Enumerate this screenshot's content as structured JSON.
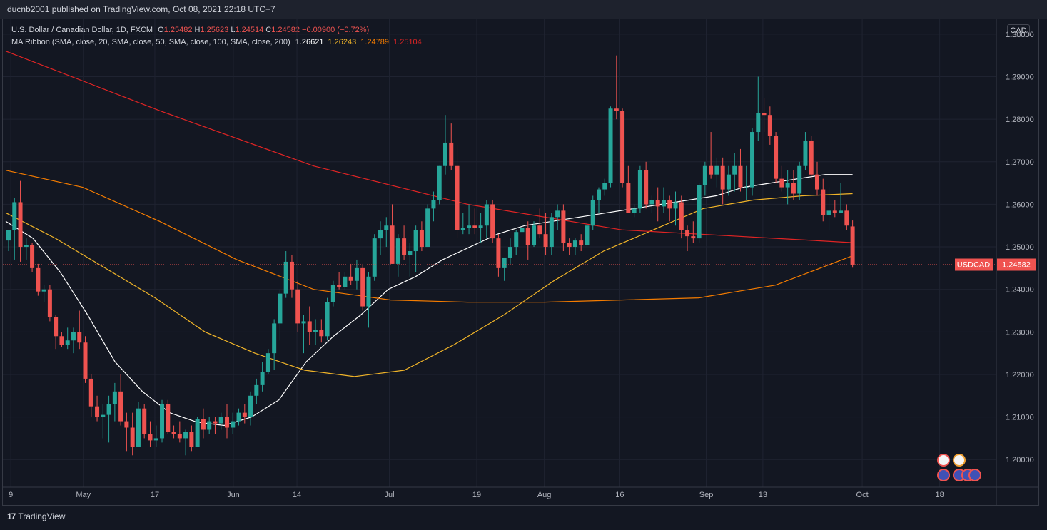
{
  "header": {
    "published": "ducnb2001 published on TradingView.com, Oct 08, 2021 22:18 UTC+7"
  },
  "legend": {
    "symbol": "U.S. Dollar / Canadian Dollar, 1D, FXCM",
    "open_label": "O",
    "open": "1.25482",
    "high_label": "H",
    "high": "1.25623",
    "low_label": "L",
    "low": "1.24514",
    "close_label": "C",
    "close": "1.24582",
    "change": "−0.00900 (−0.72%)",
    "ma_label": "MA Ribbon (SMA, close, 20, SMA, close, 50, SMA, close, 100, SMA, close, 200)",
    "ma20": "1.26621",
    "ma50": "1.26243",
    "ma100": "1.24789",
    "ma200": "1.25104"
  },
  "currency_badge": "CAD",
  "price_tag": {
    "symbol": "USDCAD",
    "value": "1.24582"
  },
  "footer": {
    "brand": "TradingView",
    "brand_mark": "17"
  },
  "colors": {
    "up": "#26a69a",
    "down": "#ef5350",
    "ma20": "#ffffff",
    "ma50": "#f0b429",
    "ma100": "#f57c00",
    "ma200": "#e02424",
    "background": "#131722"
  },
  "chart_data": {
    "type": "candlestick",
    "yaxis": {
      "ylim": [
        1.1935,
        1.3035
      ],
      "ticks": [
        "1.30000",
        "1.29000",
        "1.28000",
        "1.27000",
        "1.26000",
        "1.25000",
        "1.24000",
        "1.23000",
        "1.22000",
        "1.21000",
        "1.20000"
      ],
      "side": "right"
    },
    "xaxis": {
      "tick_labels": [
        "9",
        "May",
        "17",
        "Jun",
        "14",
        "Jul",
        "19",
        "Aug",
        "16",
        "Sep",
        "13",
        "Oct",
        "18"
      ]
    },
    "grid": true,
    "candles": [
      [
        1.2515,
        1.254,
        1.249,
        1.254
      ],
      [
        1.254,
        1.2615,
        1.247,
        1.2605
      ],
      [
        1.2605,
        1.2655,
        1.2465,
        1.25
      ],
      [
        1.25,
        1.252,
        1.247,
        1.2505
      ],
      [
        1.2505,
        1.251,
        1.244,
        1.245
      ],
      [
        1.245,
        1.246,
        1.2385,
        1.2395
      ],
      [
        1.2395,
        1.241,
        1.237,
        1.24
      ],
      [
        1.24,
        1.241,
        1.2325,
        1.2335
      ],
      [
        1.2335,
        1.234,
        1.226,
        1.229
      ],
      [
        1.229,
        1.23,
        1.2265,
        1.227
      ],
      [
        1.227,
        1.231,
        1.226,
        1.228
      ],
      [
        1.228,
        1.231,
        1.225,
        1.23
      ],
      [
        1.23,
        1.235,
        1.226,
        1.2275
      ],
      [
        1.2275,
        1.229,
        1.218,
        1.219
      ],
      [
        1.219,
        1.22,
        1.21,
        1.2125
      ],
      [
        1.2125,
        1.215,
        1.209,
        1.21
      ],
      [
        1.21,
        1.213,
        1.205,
        1.2105
      ],
      [
        1.2105,
        1.215,
        1.204,
        1.213
      ],
      [
        1.213,
        1.218,
        1.209,
        1.216
      ],
      [
        1.216,
        1.22,
        1.208,
        1.209
      ],
      [
        1.209,
        1.211,
        1.202,
        1.2075
      ],
      [
        1.2075,
        1.211,
        1.201,
        1.203
      ],
      [
        1.203,
        1.2135,
        1.203,
        1.212
      ],
      [
        1.212,
        1.213,
        1.205,
        1.206
      ],
      [
        1.206,
        1.209,
        1.203,
        1.2045
      ],
      [
        1.2045,
        1.208,
        1.203,
        1.205
      ],
      [
        1.205,
        1.214,
        1.204,
        1.213
      ],
      [
        1.213,
        1.214,
        1.206,
        1.2065
      ],
      [
        1.2065,
        1.208,
        1.205,
        1.206
      ],
      [
        1.206,
        1.209,
        1.204,
        1.205
      ],
      [
        1.205,
        1.207,
        1.201,
        1.2065
      ],
      [
        1.2065,
        1.208,
        1.202,
        1.203
      ],
      [
        1.203,
        1.21,
        1.203,
        1.2095
      ],
      [
        1.2095,
        1.212,
        1.205,
        1.207
      ],
      [
        1.207,
        1.21,
        1.206,
        1.209
      ],
      [
        1.209,
        1.21,
        1.206,
        1.2085
      ],
      [
        1.2085,
        1.211,
        1.207,
        1.21
      ],
      [
        1.21,
        1.213,
        1.205,
        1.2075
      ],
      [
        1.2075,
        1.211,
        1.206,
        1.209
      ],
      [
        1.209,
        1.212,
        1.208,
        1.211
      ],
      [
        1.211,
        1.213,
        1.2085,
        1.21
      ],
      [
        1.21,
        1.216,
        1.208,
        1.215
      ],
      [
        1.215,
        1.219,
        1.213,
        1.2175
      ],
      [
        1.2175,
        1.223,
        1.216,
        1.2205
      ],
      [
        1.2205,
        1.226,
        1.22,
        1.225
      ],
      [
        1.225,
        1.233,
        1.221,
        1.232
      ],
      [
        1.232,
        1.24,
        1.228,
        1.239
      ],
      [
        1.239,
        1.249,
        1.238,
        1.2465
      ],
      [
        1.2465,
        1.248,
        1.238,
        1.24
      ],
      [
        1.24,
        1.242,
        1.23,
        1.232
      ],
      [
        1.232,
        1.234,
        1.225,
        1.2325
      ],
      [
        1.2325,
        1.236,
        1.227,
        1.23
      ],
      [
        1.23,
        1.233,
        1.227,
        1.2305
      ],
      [
        1.2305,
        1.233,
        1.2275,
        1.229
      ],
      [
        1.229,
        1.238,
        1.228,
        1.237
      ],
      [
        1.237,
        1.242,
        1.236,
        1.241
      ],
      [
        1.241,
        1.244,
        1.24,
        1.2405
      ],
      [
        1.2405,
        1.244,
        1.24,
        1.243
      ],
      [
        1.243,
        1.246,
        1.241,
        1.242
      ],
      [
        1.242,
        1.247,
        1.24,
        1.245
      ],
      [
        1.245,
        1.246,
        1.235,
        1.236
      ],
      [
        1.236,
        1.244,
        1.231,
        1.243
      ],
      [
        1.243,
        1.253,
        1.242,
        1.252
      ],
      [
        1.252,
        1.256,
        1.248,
        1.254
      ],
      [
        1.254,
        1.257,
        1.25,
        1.255
      ],
      [
        1.255,
        1.26,
        1.246,
        1.246
      ],
      [
        1.246,
        1.253,
        1.243,
        1.252
      ],
      [
        1.252,
        1.255,
        1.247,
        1.248
      ],
      [
        1.248,
        1.251,
        1.243,
        1.249
      ],
      [
        1.249,
        1.255,
        1.244,
        1.254
      ],
      [
        1.254,
        1.256,
        1.249,
        1.25
      ],
      [
        1.25,
        1.26,
        1.25,
        1.259
      ],
      [
        1.259,
        1.263,
        1.256,
        1.261
      ],
      [
        1.261,
        1.269,
        1.26,
        1.269
      ],
      [
        1.269,
        1.281,
        1.267,
        1.2745
      ],
      [
        1.2745,
        1.279,
        1.268,
        1.269
      ],
      [
        1.269,
        1.274,
        1.252,
        1.254
      ],
      [
        1.254,
        1.258,
        1.253,
        1.2545
      ],
      [
        1.2545,
        1.26,
        1.253,
        1.255
      ],
      [
        1.255,
        1.259,
        1.253,
        1.2545
      ],
      [
        1.2545,
        1.258,
        1.251,
        1.255
      ],
      [
        1.255,
        1.261,
        1.252,
        1.26
      ],
      [
        1.26,
        1.261,
        1.251,
        1.252
      ],
      [
        1.252,
        1.253,
        1.243,
        1.245
      ],
      [
        1.245,
        1.247,
        1.242,
        1.2475
      ],
      [
        1.2475,
        1.252,
        1.246,
        1.25
      ],
      [
        1.25,
        1.254,
        1.248,
        1.2535
      ],
      [
        1.2535,
        1.257,
        1.251,
        1.2545
      ],
      [
        1.2545,
        1.256,
        1.247,
        1.2505
      ],
      [
        1.2505,
        1.256,
        1.25,
        1.255
      ],
      [
        1.255,
        1.259,
        1.252,
        1.253
      ],
      [
        1.253,
        1.258,
        1.248,
        1.25
      ],
      [
        1.25,
        1.258,
        1.248,
        1.257
      ],
      [
        1.257,
        1.26,
        1.254,
        1.2585
      ],
      [
        1.2585,
        1.26,
        1.249,
        1.251
      ],
      [
        1.251,
        1.252,
        1.248,
        1.25
      ],
      [
        1.25,
        1.252,
        1.248,
        1.2515
      ],
      [
        1.2515,
        1.253,
        1.249,
        1.2505
      ],
      [
        1.2505,
        1.256,
        1.25,
        1.255
      ],
      [
        1.255,
        1.262,
        1.254,
        1.261
      ],
      [
        1.261,
        1.264,
        1.258,
        1.2635
      ],
      [
        1.2635,
        1.266,
        1.262,
        1.265
      ],
      [
        1.265,
        1.283,
        1.264,
        1.2825
      ],
      [
        1.2825,
        1.295,
        1.28,
        1.282
      ],
      [
        1.282,
        1.2825,
        1.264,
        1.265
      ],
      [
        1.265,
        1.269,
        1.258,
        1.258
      ],
      [
        1.258,
        1.26,
        1.257,
        1.259
      ],
      [
        1.259,
        1.269,
        1.258,
        1.268
      ],
      [
        1.268,
        1.27,
        1.259,
        1.26
      ],
      [
        1.26,
        1.262,
        1.258,
        1.261
      ],
      [
        1.261,
        1.264,
        1.256,
        1.2595
      ],
      [
        1.2595,
        1.264,
        1.258,
        1.261
      ],
      [
        1.261,
        1.262,
        1.256,
        1.259
      ],
      [
        1.259,
        1.263,
        1.255,
        1.2605
      ],
      [
        1.2605,
        1.262,
        1.252,
        1.254
      ],
      [
        1.254,
        1.255,
        1.249,
        1.2525
      ],
      [
        1.2525,
        1.256,
        1.251,
        1.252
      ],
      [
        1.252,
        1.265,
        1.251,
        1.2645
      ],
      [
        1.2645,
        1.27,
        1.262,
        1.269
      ],
      [
        1.269,
        1.277,
        1.266,
        1.267
      ],
      [
        1.267,
        1.271,
        1.264,
        1.269
      ],
      [
        1.269,
        1.271,
        1.26,
        1.2635
      ],
      [
        1.2635,
        1.269,
        1.262,
        1.267
      ],
      [
        1.267,
        1.272,
        1.263,
        1.269
      ],
      [
        1.269,
        1.273,
        1.263,
        1.264
      ],
      [
        1.264,
        1.269,
        1.261,
        1.264
      ],
      [
        1.264,
        1.278,
        1.262,
        1.277
      ],
      [
        1.277,
        1.29,
        1.275,
        1.2815
      ],
      [
        1.2815,
        1.285,
        1.277,
        1.281
      ],
      [
        1.281,
        1.283,
        1.274,
        1.276
      ],
      [
        1.276,
        1.277,
        1.265,
        1.266
      ],
      [
        1.266,
        1.269,
        1.263,
        1.264
      ],
      [
        1.264,
        1.268,
        1.26,
        1.265
      ],
      [
        1.265,
        1.268,
        1.261,
        1.2625
      ],
      [
        1.2625,
        1.27,
        1.261,
        1.269
      ],
      [
        1.269,
        1.277,
        1.268,
        1.275
      ],
      [
        1.275,
        1.276,
        1.266,
        1.267
      ],
      [
        1.267,
        1.27,
        1.262,
        1.2635
      ],
      [
        1.2635,
        1.266,
        1.256,
        1.2575
      ],
      [
        1.2575,
        1.264,
        1.254,
        1.2585
      ],
      [
        1.2585,
        1.261,
        1.257,
        1.258
      ],
      [
        1.258,
        1.265,
        1.258,
        1.2585
      ],
      [
        1.2585,
        1.26,
        1.254,
        1.255
      ],
      [
        1.2548,
        1.2562,
        1.2451,
        1.2458
      ]
    ],
    "series": [
      {
        "name": "SMA 20",
        "color": "#ffffff",
        "values": [
          [
            0,
            1.256
          ],
          [
            10,
            1.252
          ],
          [
            20,
            1.244
          ],
          [
            30,
            1.234
          ],
          [
            40,
            1.223
          ],
          [
            50,
            1.216
          ],
          [
            60,
            1.211
          ],
          [
            70,
            1.2088
          ],
          [
            80,
            1.208
          ],
          [
            90,
            1.21
          ],
          [
            100,
            1.214
          ],
          [
            110,
            1.223
          ],
          [
            120,
            1.229
          ],
          [
            130,
            1.234
          ],
          [
            140,
            1.24
          ],
          [
            150,
            1.243
          ],
          [
            160,
            1.247
          ],
          [
            170,
            1.25
          ],
          [
            180,
            1.253
          ],
          [
            190,
            1.255
          ],
          [
            200,
            1.256
          ],
          [
            210,
            1.257
          ],
          [
            220,
            1.258
          ],
          [
            230,
            1.259
          ],
          [
            240,
            1.26
          ],
          [
            250,
            1.261
          ],
          [
            260,
            1.262
          ],
          [
            270,
            1.264
          ],
          [
            280,
            1.265
          ],
          [
            290,
            1.266
          ],
          [
            300,
            1.267
          ],
          [
            310,
            1.267
          ]
        ]
      },
      {
        "name": "SMA 50",
        "color": "#f0b429",
        "values": [
          [
            0,
            1.258
          ],
          [
            30,
            1.252
          ],
          [
            60,
            1.245
          ],
          [
            90,
            1.238
          ],
          [
            120,
            1.23
          ],
          [
            150,
            1.225
          ],
          [
            180,
            1.221
          ],
          [
            210,
            1.2195
          ],
          [
            240,
            1.221
          ],
          [
            270,
            1.227
          ],
          [
            300,
            1.234
          ],
          [
            330,
            1.242
          ],
          [
            360,
            1.249
          ],
          [
            390,
            1.254
          ],
          [
            420,
            1.259
          ],
          [
            450,
            1.261
          ],
          [
            480,
            1.262
          ],
          [
            510,
            1.2625
          ]
        ]
      },
      {
        "name": "SMA 100",
        "color": "#f57c00",
        "values": [
          [
            0,
            1.268
          ],
          [
            50,
            1.264
          ],
          [
            100,
            1.256
          ],
          [
            150,
            1.247
          ],
          [
            200,
            1.24
          ],
          [
            250,
            1.2375
          ],
          [
            300,
            1.237
          ],
          [
            350,
            1.237
          ],
          [
            400,
            1.2375
          ],
          [
            450,
            1.238
          ],
          [
            500,
            1.241
          ],
          [
            550,
            1.2479
          ]
        ]
      },
      {
        "name": "SMA 200",
        "color": "#e02424",
        "values": [
          [
            0,
            1.296
          ],
          [
            100,
            1.282
          ],
          [
            200,
            1.269
          ],
          [
            300,
            1.26
          ],
          [
            400,
            1.254
          ],
          [
            500,
            1.252
          ],
          [
            550,
            1.251
          ]
        ]
      }
    ],
    "last_price": 1.24582
  }
}
